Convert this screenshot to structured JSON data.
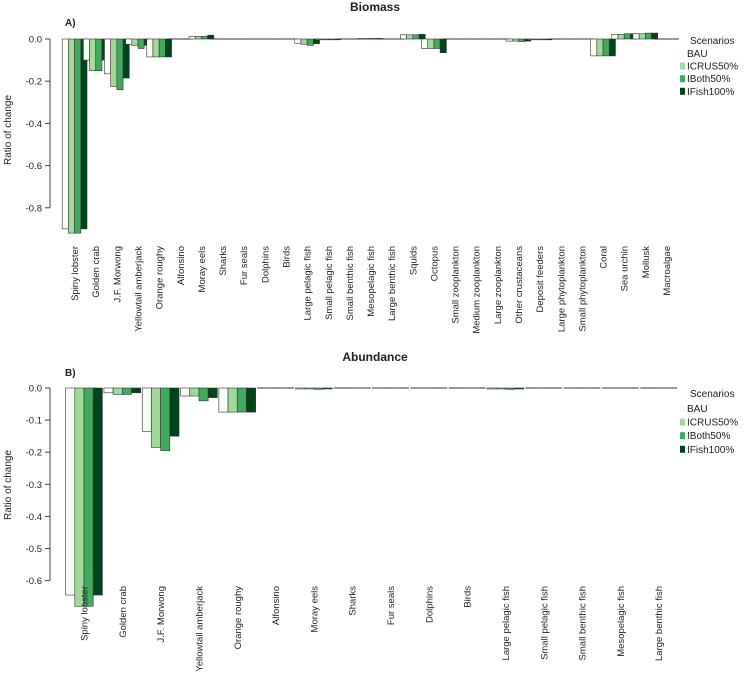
{
  "chart_data": [
    {
      "type": "bar",
      "panel_label": "A)",
      "title": "Biomass",
      "ylabel": "Ratio of change",
      "xlabel": "",
      "ylim": [
        -0.93,
        0.02
      ],
      "yticks": [
        0.0,
        -0.2,
        -0.4,
        -0.6,
        -0.8
      ],
      "ytick_labels": [
        "0.0",
        "-0.2",
        "-0.4",
        "-0.6",
        "-0.8"
      ],
      "legend_title": "Scenarios",
      "legend_position": "right",
      "grid": false,
      "categories": [
        "Spiny lobster",
        "Golden crab",
        "J.F. Morwong",
        "Yellowtail amberjack",
        "Orange roughy",
        "Alfonsino",
        "Moray eels",
        "Sharks",
        "Fur seals",
        "Dolphins",
        "Birds",
        "Large pelagic fish",
        "Small pelagic fish",
        "Small benthic fish",
        "Mesopelagic fish",
        "Large benthic fish",
        "Squids",
        "Octopus",
        "Small zooplankton",
        "Medium zooplankton",
        "Large zooplankton",
        "Other crustaceans",
        "Deposit feeders",
        "Large phytoplankton",
        "Small phytoplankton",
        "Coral",
        "Sea urchin",
        "Mollusk",
        "Macroalgae"
      ],
      "series": [
        {
          "name": "BAU",
          "color": "#f7fcf5",
          "values": [
            -0.9,
            -0.1,
            -0.165,
            -0.025,
            -0.085,
            0,
            0.012,
            0,
            0,
            0,
            0,
            -0.02,
            -0.003,
            0,
            0.003,
            0,
            0.02,
            -0.045,
            0,
            0,
            0,
            -0.01,
            -0.003,
            0,
            0,
            -0.08,
            0.022,
            0.025,
            0
          ]
        },
        {
          "name": "ICRUS50%",
          "color": "#a1d99b",
          "values": [
            -0.92,
            -0.15,
            -0.225,
            -0.03,
            -0.085,
            0,
            0.012,
            0,
            0,
            0,
            0,
            -0.025,
            -0.003,
            0,
            0.003,
            0,
            0.02,
            -0.045,
            0,
            0,
            0,
            -0.01,
            -0.003,
            0,
            0,
            -0.08,
            0.022,
            0.025,
            0
          ]
        },
        {
          "name": "IBoth50%",
          "color": "#41ab5d",
          "values": [
            -0.92,
            -0.15,
            -0.24,
            -0.045,
            -0.085,
            0,
            0.012,
            0,
            0,
            0,
            0,
            -0.03,
            -0.003,
            0,
            0.003,
            0,
            0.02,
            -0.045,
            0,
            0,
            0,
            -0.012,
            -0.003,
            0,
            0,
            -0.08,
            0.025,
            0.028,
            0
          ]
        },
        {
          "name": "IFish100%",
          "color": "#00441b",
          "values": [
            -0.9,
            -0.1,
            -0.185,
            -0.03,
            -0.085,
            0,
            0.018,
            0,
            0,
            0,
            0,
            -0.022,
            -0.003,
            0,
            0.003,
            0,
            0.022,
            -0.065,
            0,
            0,
            0,
            -0.01,
            -0.003,
            0,
            0,
            -0.08,
            0.025,
            0.028,
            0
          ]
        }
      ]
    },
    {
      "type": "bar",
      "panel_label": "B)",
      "title": "Abundance",
      "ylabel": "Ratio of change",
      "xlabel": "",
      "ylim": [
        -0.695,
        0.0
      ],
      "yticks": [
        0.0,
        -0.1,
        -0.2,
        -0.3,
        -0.4,
        -0.5,
        -0.6
      ],
      "ytick_labels": [
        "0.0",
        "-0.1",
        "-0.2",
        "-0.3",
        "-0.4",
        "-0.5",
        "-0.6"
      ],
      "legend_title": "Scenarios",
      "legend_position": "right",
      "grid": false,
      "categories": [
        "Spiny lobster",
        "Golden crab",
        "J.F. Morwong",
        "Yellowtail amberjack",
        "Orange roughy",
        "Alfonsino",
        "Moray eels",
        "Sharks",
        "Fur seals",
        "Dolphins",
        "Birds",
        "Large pelagic fish",
        "Small pelagic fish",
        "Small benthic fish",
        "Mesopelagic fish",
        "Large benthic fish"
      ],
      "series": [
        {
          "name": "BAU",
          "color": "#f7fcf5",
          "values": [
            -0.645,
            -0.015,
            -0.135,
            -0.025,
            -0.075,
            0,
            -0.003,
            0,
            0,
            0,
            0,
            -0.003,
            0,
            0,
            0,
            0
          ]
        },
        {
          "name": "ICRUS50%",
          "color": "#a1d99b",
          "values": [
            -0.68,
            -0.02,
            -0.185,
            -0.025,
            -0.075,
            0,
            -0.003,
            0,
            0,
            0,
            0,
            -0.003,
            0,
            0,
            0,
            0
          ]
        },
        {
          "name": "IBoth50%",
          "color": "#41ab5d",
          "values": [
            -0.68,
            -0.02,
            -0.195,
            -0.04,
            -0.075,
            0,
            -0.004,
            0,
            0,
            0,
            0,
            -0.004,
            0,
            0,
            0,
            0
          ]
        },
        {
          "name": "IFish100%",
          "color": "#00441b",
          "values": [
            -0.645,
            -0.015,
            -0.15,
            -0.03,
            -0.075,
            0,
            -0.003,
            0,
            0,
            0,
            0,
            -0.003,
            0,
            0,
            0,
            0
          ]
        }
      ]
    }
  ]
}
